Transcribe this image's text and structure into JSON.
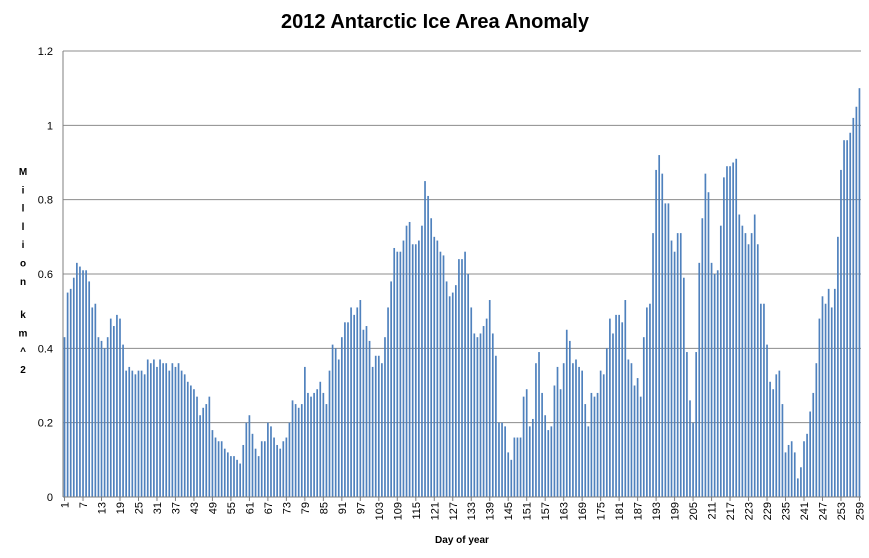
{
  "chart_data": {
    "type": "bar",
    "title": "2012 Antarctic Ice Area Anomaly",
    "xlabel": "Day of year",
    "ylabel": "Million km^2",
    "ylim": [
      0,
      1.2
    ],
    "yticks": [
      "0",
      "0.2",
      "0.4",
      "0.6",
      "0.8",
      "1",
      "1.2"
    ],
    "xtick_labels": [
      "1",
      "7",
      "13",
      "19",
      "25",
      "31",
      "37",
      "43",
      "49",
      "55",
      "61",
      "67",
      "73",
      "79",
      "85",
      "91",
      "97",
      "103",
      "109",
      "115",
      "121",
      "127",
      "133",
      "139",
      "145",
      "151",
      "157",
      "163",
      "169",
      "175",
      "181",
      "187",
      "193",
      "199",
      "205",
      "211",
      "217",
      "223",
      "229",
      "235",
      "241",
      "247",
      "253",
      "259"
    ],
    "grid": "horizontal",
    "bar_color": "#4f81bd",
    "x_start": 1,
    "values": [
      0.43,
      0.55,
      0.56,
      0.59,
      0.63,
      0.62,
      0.61,
      0.61,
      0.58,
      0.51,
      0.52,
      0.43,
      0.42,
      0.4,
      0.43,
      0.48,
      0.46,
      0.49,
      0.48,
      0.41,
      0.34,
      0.35,
      0.34,
      0.33,
      0.34,
      0.34,
      0.33,
      0.37,
      0.36,
      0.37,
      0.35,
      0.37,
      0.36,
      0.36,
      0.34,
      0.36,
      0.35,
      0.36,
      0.34,
      0.33,
      0.31,
      0.3,
      0.29,
      0.27,
      0.22,
      0.24,
      0.25,
      0.27,
      0.18,
      0.16,
      0.15,
      0.15,
      0.13,
      0.12,
      0.11,
      0.11,
      0.1,
      0.09,
      0.14,
      0.2,
      0.22,
      0.17,
      0.13,
      0.11,
      0.15,
      0.15,
      0.2,
      0.19,
      0.16,
      0.14,
      0.13,
      0.15,
      0.16,
      0.2,
      0.26,
      0.25,
      0.24,
      0.25,
      0.35,
      0.28,
      0.27,
      0.28,
      0.29,
      0.31,
      0.28,
      0.25,
      0.34,
      0.41,
      0.4,
      0.37,
      0.43,
      0.47,
      0.47,
      0.51,
      0.49,
      0.51,
      0.53,
      0.45,
      0.46,
      0.42,
      0.35,
      0.38,
      0.38,
      0.36,
      0.43,
      0.51,
      0.58,
      0.67,
      0.66,
      0.66,
      0.69,
      0.73,
      0.74,
      0.68,
      0.68,
      0.69,
      0.73,
      0.85,
      0.81,
      0.75,
      0.7,
      0.69,
      0.66,
      0.65,
      0.58,
      0.54,
      0.55,
      0.57,
      0.64,
      0.64,
      0.66,
      0.6,
      0.51,
      0.44,
      0.43,
      0.44,
      0.46,
      0.48,
      0.53,
      0.44,
      0.38,
      0.2,
      0.2,
      0.19,
      0.12,
      0.1,
      0.16,
      0.16,
      0.16,
      0.27,
      0.29,
      0.19,
      0.21,
      0.36,
      0.39,
      0.28,
      0.22,
      0.18,
      0.19,
      0.3,
      0.35,
      0.29,
      0.36,
      0.45,
      0.42,
      0.36,
      0.37,
      0.35,
      0.34,
      0.25,
      0.19,
      0.28,
      0.27,
      0.28,
      0.34,
      0.33,
      0.4,
      0.48,
      0.44,
      0.49,
      0.49,
      0.47,
      0.53,
      0.37,
      0.36,
      0.3,
      0.32,
      0.27,
      0.43,
      0.51,
      0.52,
      0.71,
      0.88,
      0.92,
      0.87,
      0.79,
      0.79,
      0.69,
      0.66,
      0.71,
      0.71,
      0.59,
      0.39,
      0.26,
      0.2,
      0.39,
      0.63,
      0.75,
      0.87,
      0.82,
      0.63,
      0.6,
      0.61,
      0.73,
      0.86,
      0.89,
      0.89,
      0.9,
      0.91,
      0.76,
      0.73,
      0.71,
      0.68,
      0.71,
      0.76,
      0.68,
      0.52,
      0.52,
      0.41,
      0.31,
      0.29,
      0.33,
      0.34,
      0.25,
      0.12,
      0.14,
      0.15,
      0.12,
      0.05,
      0.08,
      0.15,
      0.17,
      0.23,
      0.28,
      0.36,
      0.48,
      0.54,
      0.52,
      0.56,
      0.51,
      0.56,
      0.7,
      0.88,
      0.96,
      0.96,
      0.98,
      1.02,
      1.05,
      1.1
    ]
  }
}
